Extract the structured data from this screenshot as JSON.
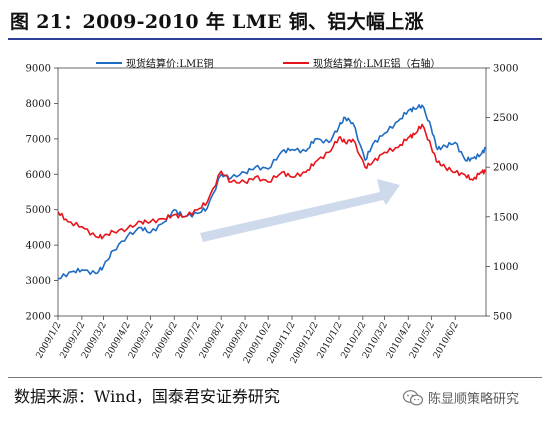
{
  "title": "图 21：2009-2010 年 LME 铜、铝大幅上涨",
  "source": "数据来源：Wind，国泰君安证券研究",
  "watermark": {
    "text": "陈显顺策略研究",
    "icon": "wechat-icon"
  },
  "colors": {
    "copper": "#1f6cc4",
    "aluminum": "#e8141b",
    "arrow": "#c9d6ea",
    "title_rule": "#2f3f9a"
  },
  "chart_data": {
    "type": "line",
    "legend": {
      "placement": "top",
      "entries": [
        "现货结算价:LME铜",
        "现货结算价:LME铝（右轴）"
      ]
    },
    "x_tick_labels": [
      "2009/1/2",
      "2009/2/2",
      "2009/3/2",
      "2009/4/2",
      "2009/5/2",
      "2009/6/2",
      "2009/7/2",
      "2009/8/2",
      "2009/9/2",
      "2009/10/2",
      "2009/11/2",
      "2009/12/2",
      "2010/1/2",
      "2010/2/2",
      "2010/3/2",
      "2010/4/2",
      "2010/5/2",
      "2010/6/2"
    ],
    "y_left": {
      "min": 2000,
      "max": 9000,
      "ticks": [
        2000,
        3000,
        4000,
        5000,
        6000,
        7000,
        8000,
        9000
      ]
    },
    "y_right": {
      "min": 500,
      "max": 3000,
      "ticks": [
        500,
        1000,
        1500,
        2000,
        2500,
        3000
      ]
    },
    "grid": false,
    "annotation": "upward-trend-arrow",
    "series": [
      {
        "name": "现货结算价:LME铜",
        "axis": "left",
        "x": [
          "2009-01-02",
          "2009-01-20",
          "2009-02-02",
          "2009-02-20",
          "2009-03-02",
          "2009-03-15",
          "2009-04-02",
          "2009-04-20",
          "2009-05-02",
          "2009-05-20",
          "2009-06-02",
          "2009-06-15",
          "2009-07-02",
          "2009-07-15",
          "2009-08-02",
          "2009-08-15",
          "2009-09-02",
          "2009-09-15",
          "2009-10-02",
          "2009-10-20",
          "2009-11-02",
          "2009-11-20",
          "2009-12-02",
          "2009-12-20",
          "2010-01-02",
          "2010-01-10",
          "2010-01-20",
          "2010-02-05",
          "2010-02-15",
          "2010-03-02",
          "2010-03-20",
          "2010-04-02",
          "2010-04-10",
          "2010-04-20",
          "2010-05-02",
          "2010-05-10",
          "2010-05-20",
          "2010-06-02",
          "2010-06-15",
          "2010-06-25",
          "2010-07-05",
          "2010-07-12"
        ],
        "values": [
          3050,
          3250,
          3300,
          3200,
          3400,
          3850,
          4250,
          4500,
          4350,
          4650,
          5000,
          4800,
          4900,
          5050,
          6000,
          5900,
          6050,
          6200,
          6150,
          6650,
          6700,
          6650,
          7000,
          6900,
          7350,
          7600,
          7450,
          6400,
          6850,
          7150,
          7500,
          7800,
          7850,
          7950,
          7300,
          6700,
          6800,
          6900,
          6400,
          6450,
          6550,
          6750
        ]
      },
      {
        "name": "现货结算价:LME铝（右轴）",
        "axis": "right",
        "x": [
          "2009-01-02",
          "2009-01-15",
          "2009-02-02",
          "2009-02-20",
          "2009-03-02",
          "2009-03-15",
          "2009-04-02",
          "2009-04-20",
          "2009-05-02",
          "2009-05-20",
          "2009-06-02",
          "2009-06-15",
          "2009-07-02",
          "2009-07-15",
          "2009-08-02",
          "2009-08-15",
          "2009-09-02",
          "2009-09-15",
          "2009-10-02",
          "2009-10-20",
          "2009-11-02",
          "2009-11-20",
          "2009-12-02",
          "2009-12-20",
          "2010-01-02",
          "2010-01-10",
          "2010-01-20",
          "2010-02-05",
          "2010-02-15",
          "2010-03-02",
          "2010-03-20",
          "2010-04-02",
          "2010-04-10",
          "2010-04-20",
          "2010-05-02",
          "2010-05-10",
          "2010-05-20",
          "2010-06-02",
          "2010-06-15",
          "2010-06-25",
          "2010-07-05",
          "2010-07-12"
        ],
        "values": [
          1550,
          1450,
          1400,
          1300,
          1300,
          1350,
          1380,
          1450,
          1450,
          1480,
          1520,
          1500,
          1570,
          1650,
          1960,
          1850,
          1850,
          1900,
          1850,
          1950,
          1900,
          1950,
          2050,
          2150,
          2300,
          2250,
          2280,
          2000,
          2050,
          2150,
          2200,
          2300,
          2330,
          2430,
          2200,
          2050,
          2000,
          1950,
          1920,
          1870,
          1950,
          1960
        ]
      }
    ]
  }
}
